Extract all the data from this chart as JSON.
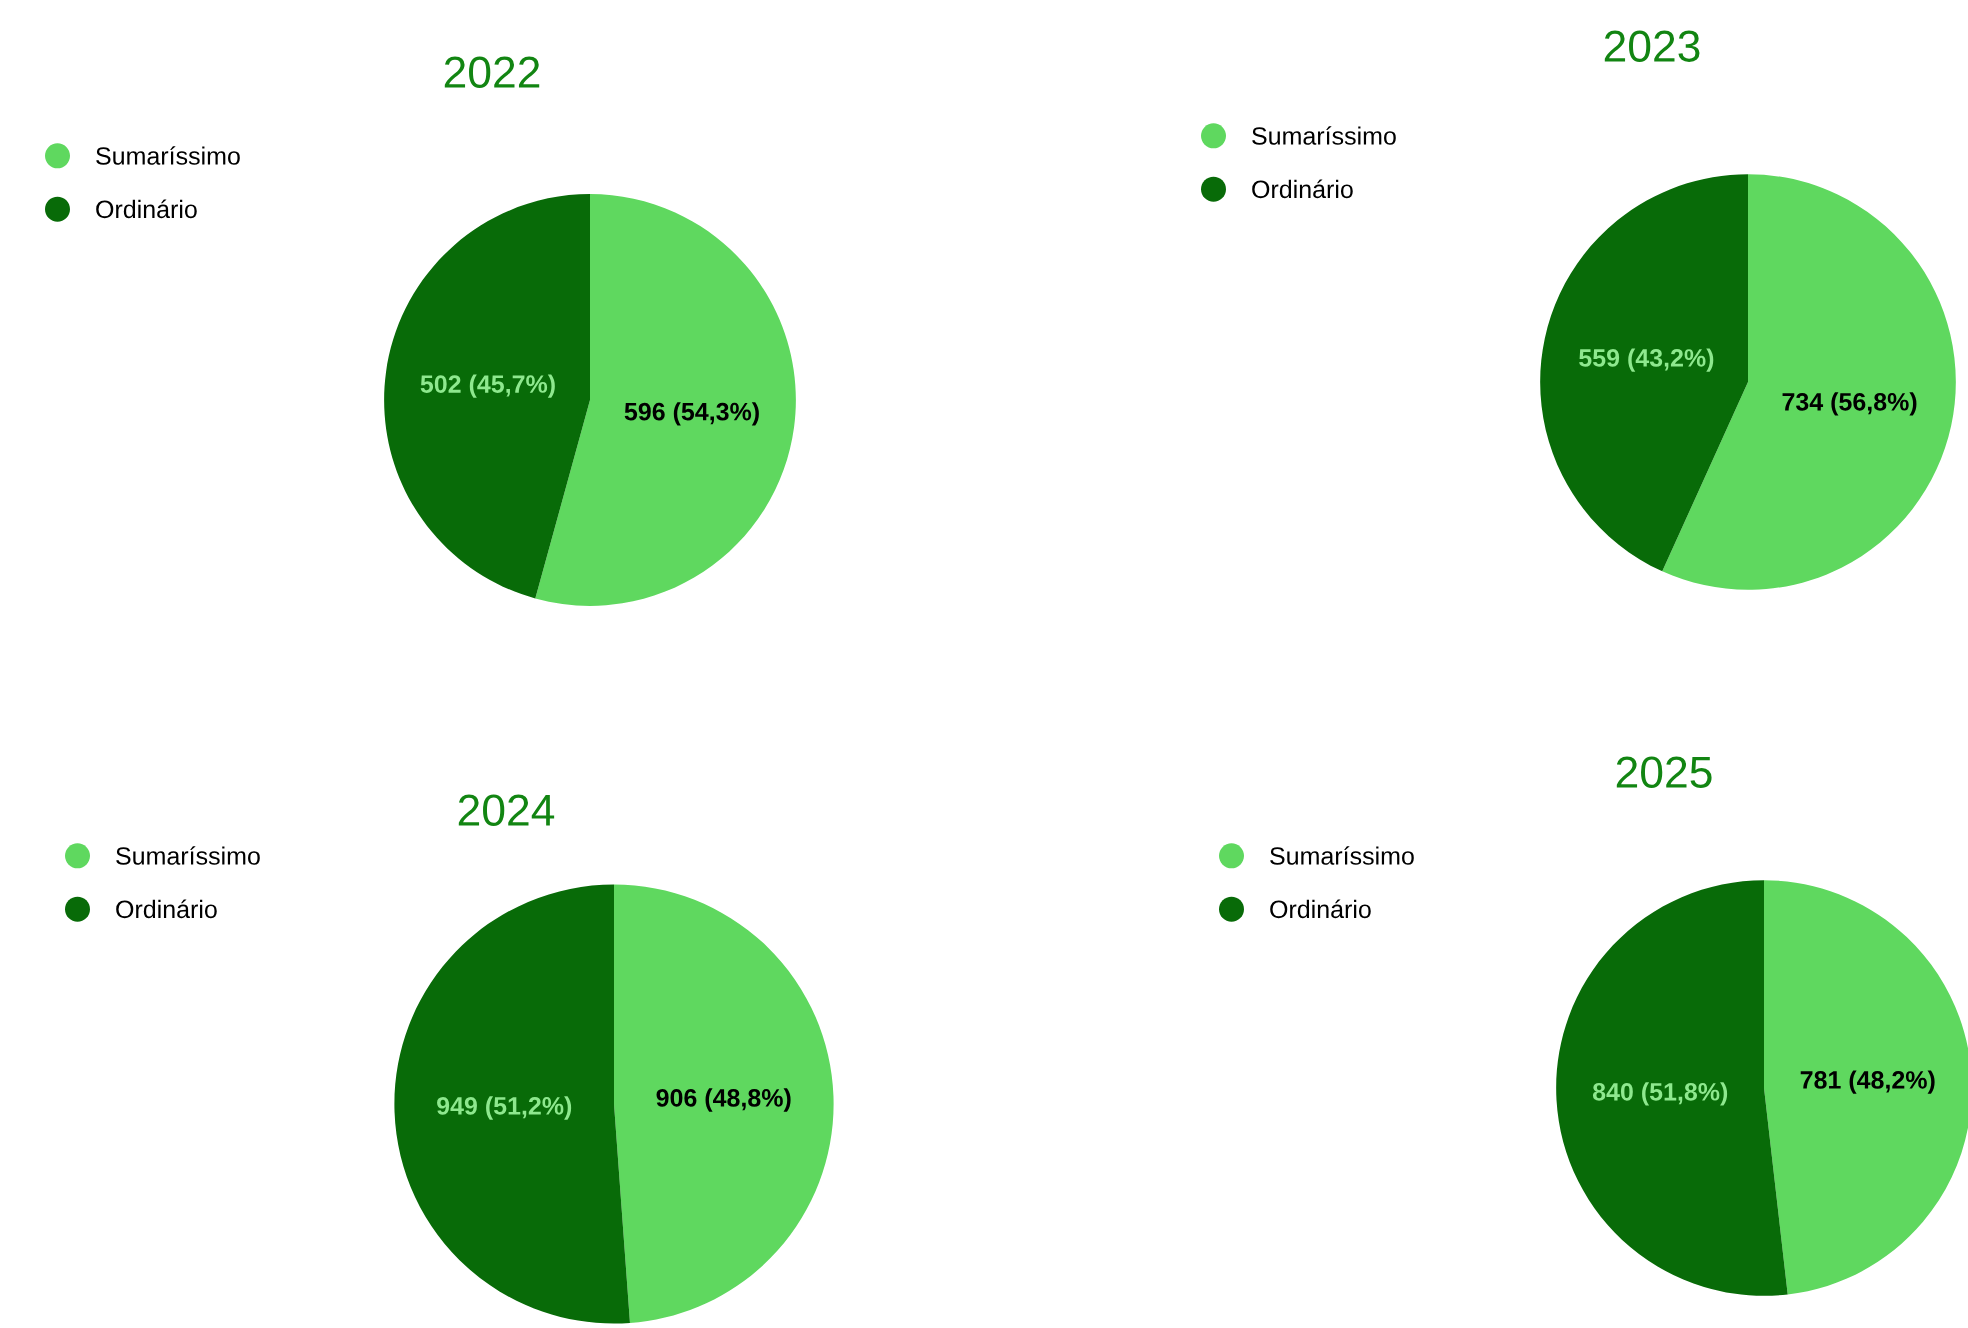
{
  "chart_data": [
    {
      "type": "pie",
      "title": "2022",
      "categories": [
        "Sumaríssimo",
        "Ordinário"
      ],
      "values": [
        596,
        502
      ],
      "colors": [
        "#5fd85f",
        "#086b08"
      ],
      "value_labels": [
        "596 (54,3%)",
        "502 (45,7%)"
      ],
      "legend": "top left"
    },
    {
      "type": "pie",
      "title": "2023",
      "categories": [
        "Sumaríssimo",
        "Ordinário"
      ],
      "values": [
        734,
        559
      ],
      "colors": [
        "#5fd85f",
        "#086b08"
      ],
      "value_labels": [
        "734 (56,8%)",
        "559 (43,2%)"
      ],
      "legend": "top left"
    },
    {
      "type": "pie",
      "title": "2024",
      "categories": [
        "Sumaríssimo",
        "Ordinário"
      ],
      "values": [
        906,
        949
      ],
      "colors": [
        "#5fd85f",
        "#086b08"
      ],
      "value_labels": [
        "906 (48,8%)",
        "949 (51,2%)"
      ],
      "legend": "top left"
    },
    {
      "type": "pie",
      "title": "2025",
      "categories": [
        "Sumaríssimo",
        "Ordinário"
      ],
      "values": [
        781,
        840
      ],
      "colors": [
        "#5fd85f",
        "#086b08"
      ],
      "value_labels": [
        "781 (48,2%)",
        "840 (51,8%)"
      ],
      "legend": "top left"
    }
  ]
}
